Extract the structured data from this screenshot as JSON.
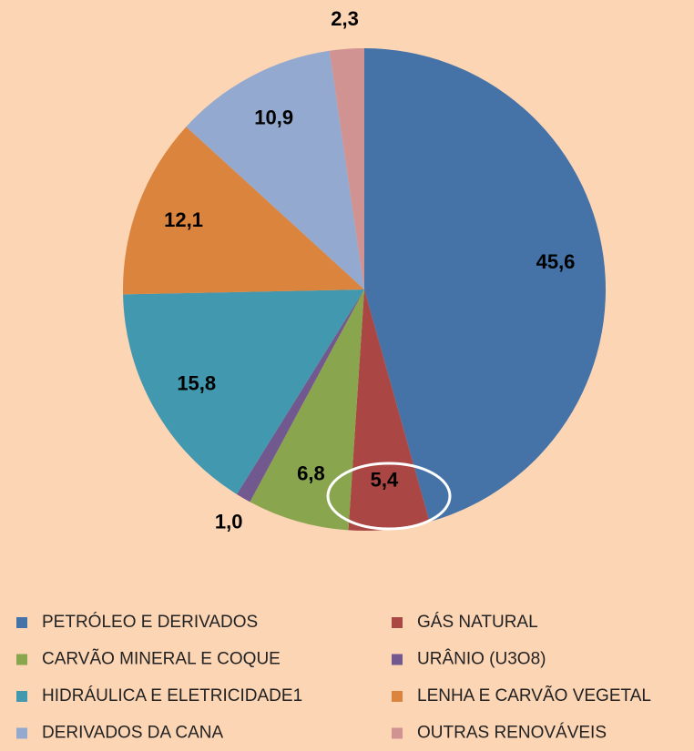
{
  "chart_data": {
    "type": "pie",
    "categories": [
      "PETRÓLEO E DERIVADOS",
      "GÁS NATURAL",
      "CARVÃO MINERAL E COQUE",
      "URÂNIO (U3O8)",
      "HIDRÁULICA E ELETRICIDADE1",
      "LENHA E CARVÃO VEGETAL",
      "DERIVADOS DA CANA",
      "OUTRAS  RENOVÁVEIS"
    ],
    "values": [
      45.6,
      5.4,
      6.8,
      1.0,
      15.8,
      12.1,
      10.9,
      2.3
    ],
    "value_labels": [
      "45,6",
      "5,4",
      "6,8",
      "1,0",
      "15,8",
      "12,1",
      "10,9",
      "2,3"
    ],
    "colors": [
      "#4572a7",
      "#aa4643",
      "#89a54e",
      "#71588f",
      "#4198af",
      "#db843d",
      "#93a9cf",
      "#d09392"
    ]
  }
}
